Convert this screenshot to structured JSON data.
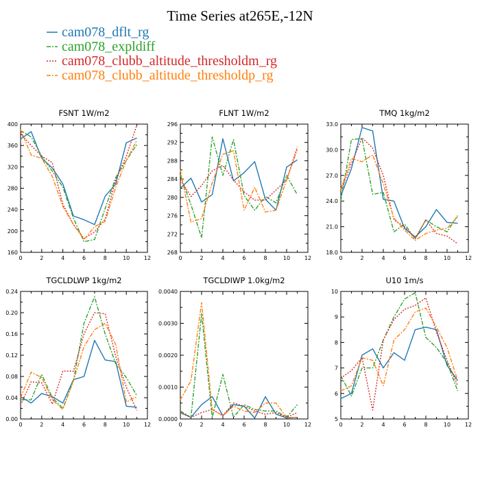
{
  "figure": {
    "title": "Time Series at265E,-12N"
  },
  "legend": [
    {
      "name": "cam078_dflt_rg",
      "color": "#1f77b4",
      "dash": "solid"
    },
    {
      "name": "cam078_expldiff",
      "color": "#2ca02c",
      "dash": "dashdot"
    },
    {
      "name": "cam078_clubb_altitude_thresholdm_rg",
      "color": "#d62728",
      "dash": "dot"
    },
    {
      "name": "cam078_clubb_altitude_thresholdp_rg",
      "color": "#ff7f0e",
      "dash": "dashdot"
    }
  ],
  "chart_data": [
    {
      "type": "line",
      "title": "FSNT   1W/m2",
      "x": [
        0,
        1,
        2,
        3,
        4,
        5,
        6,
        7,
        8,
        9,
        10,
        11
      ],
      "xlim": [
        0,
        12
      ],
      "ylim": [
        160,
        400
      ],
      "xticks": [
        0,
        2,
        4,
        6,
        8,
        10,
        12
      ],
      "xticklabels": [
        "0",
        "2",
        "4",
        "6",
        "8",
        "10",
        "12"
      ],
      "yticks": [
        160,
        200,
        240,
        280,
        320,
        360,
        400
      ],
      "yticklabels": [
        "160",
        "200",
        "240",
        "280",
        "320",
        "360",
        "400"
      ],
      "series": [
        {
          "name": "cam078_dflt_rg",
          "values": [
            372,
            386,
            336,
            318,
            288,
            228,
            221,
            212,
            265,
            288,
            365,
            374
          ]
        },
        {
          "name": "cam078_expldiff",
          "values": [
            388,
            376,
            340,
            312,
            282,
            224,
            180,
            184,
            242,
            300,
            332,
            362
          ]
        },
        {
          "name": "cam078_clubb_altitude_thresholdm_rg",
          "values": [
            382,
            360,
            340,
            328,
            250,
            212,
            186,
            198,
            222,
            296,
            340,
            398
          ]
        },
        {
          "name": "cam078_clubb_altitude_thresholdp_rg",
          "values": [
            390,
            342,
            336,
            302,
            246,
            212,
            184,
            208,
            218,
            282,
            332,
            370
          ]
        }
      ]
    },
    {
      "type": "line",
      "title": "FLNT   1W/m2",
      "x": [
        0,
        1,
        2,
        3,
        4,
        5,
        6,
        7,
        8,
        9,
        10,
        11
      ],
      "xlim": [
        0,
        12
      ],
      "ylim": [
        268,
        296
      ],
      "xticks": [
        0,
        2,
        4,
        6,
        8,
        10,
        12
      ],
      "xticklabels": [
        "0",
        "2",
        "4",
        "6",
        "8",
        "10",
        "12"
      ],
      "yticks": [
        268,
        272,
        276,
        280,
        284,
        288,
        292,
        296
      ],
      "yticklabels": [
        "268",
        "272",
        "276",
        "280",
        "284",
        "288",
        "292",
        "296"
      ],
      "series": [
        {
          "name": "cam078_dflt_rg",
          "values": [
            282,
            284.2,
            279,
            280.6,
            292.8,
            283.6,
            285.4,
            287.8,
            279.6,
            277.2,
            286.6,
            288.2
          ]
        },
        {
          "name": "cam078_expldiff",
          "values": [
            284.8,
            278.4,
            271.2,
            293.2,
            284.8,
            292.6,
            280.4,
            277.2,
            280.2,
            278.8,
            284.8,
            280.6
          ]
        },
        {
          "name": "cam078_clubb_altitude_thresholdm_rg",
          "values": [
            283.8,
            280.2,
            282.6,
            285.8,
            287,
            283.8,
            281.2,
            279.4,
            279.4,
            281.6,
            283.8,
            291
          ]
        },
        {
          "name": "cam078_clubb_altitude_thresholdp_rg",
          "values": [
            286,
            274.6,
            275.4,
            283.2,
            289.4,
            290.2,
            277.2,
            282.2,
            276.8,
            277.2,
            283.8,
            290.4
          ]
        }
      ]
    },
    {
      "type": "line",
      "title": "TMQ   1kg/m2",
      "x": [
        0,
        1,
        2,
        3,
        4,
        5,
        6,
        7,
        8,
        9,
        10,
        11
      ],
      "xlim": [
        0,
        12
      ],
      "ylim": [
        18,
        33
      ],
      "xticks": [
        0,
        2,
        4,
        6,
        8,
        10,
        12
      ],
      "xticklabels": [
        "0",
        "2",
        "4",
        "6",
        "8",
        "10",
        "12"
      ],
      "yticks": [
        18,
        21,
        24,
        27,
        30,
        33
      ],
      "yticklabels": [
        "18.0",
        "21.0",
        "24.0",
        "27.0",
        "30.0",
        "33.0"
      ],
      "series": [
        {
          "name": "cam078_dflt_rg",
          "values": [
            24.6,
            27.8,
            32.6,
            32.2,
            24.2,
            24.0,
            20.8,
            19.8,
            21.0,
            23.0,
            21.5,
            21.4
          ]
        },
        {
          "name": "cam078_expldiff",
          "values": [
            24.0,
            31.2,
            31.3,
            24.8,
            25.0,
            20.4,
            21.3,
            19.6,
            21.8,
            21.0,
            20.4,
            22.3
          ]
        },
        {
          "name": "cam078_clubb_altitude_thresholdm_rg",
          "values": [
            25.2,
            28.4,
            31.4,
            30.2,
            27.0,
            21.8,
            21.0,
            19.6,
            21.8,
            20.2,
            19.9,
            19.0
          ]
        },
        {
          "name": "cam078_clubb_altitude_thresholdp_rg",
          "values": [
            25.4,
            29.0,
            28.6,
            29.4,
            26.0,
            22.0,
            20.6,
            19.4,
            20.2,
            20.6,
            20.8,
            22.2
          ]
        }
      ]
    },
    {
      "type": "line",
      "title": "TGCLDLWP   1kg/m2",
      "x": [
        0,
        1,
        2,
        3,
        4,
        5,
        6,
        7,
        8,
        9,
        10,
        11
      ],
      "xlim": [
        0,
        12
      ],
      "ylim": [
        0,
        0.24
      ],
      "xticks": [
        0,
        2,
        4,
        6,
        8,
        10,
        12
      ],
      "xticklabels": [
        "0",
        "2",
        "4",
        "6",
        "8",
        "10",
        "12"
      ],
      "yticks": [
        0,
        0.04,
        0.08,
        0.12,
        0.16,
        0.2,
        0.24
      ],
      "yticklabels": [
        "0.00",
        "0.04",
        "0.08",
        "0.12",
        "0.16",
        "0.20",
        "0.24"
      ],
      "series": [
        {
          "name": "cam078_dflt_rg",
          "values": [
            0.042,
            0.03,
            0.048,
            0.042,
            0.03,
            0.074,
            0.08,
            0.148,
            0.111,
            0.108,
            0.024,
            0.022
          ]
        },
        {
          "name": "cam078_expldiff",
          "values": [
            0.036,
            0.036,
            0.084,
            0.04,
            0.02,
            0.072,
            0.18,
            0.23,
            0.16,
            0.104,
            0.078,
            0.044
          ]
        },
        {
          "name": "cam078_clubb_altitude_thresholdm_rg",
          "values": [
            0.026,
            0.07,
            0.068,
            0.028,
            0.09,
            0.09,
            0.16,
            0.2,
            0.198,
            0.118,
            0.06,
            0.016
          ]
        },
        {
          "name": "cam078_clubb_altitude_thresholdp_rg",
          "values": [
            0.04,
            0.088,
            0.078,
            0.036,
            0.018,
            0.072,
            0.136,
            0.168,
            0.18,
            0.14,
            0.032,
            0.042
          ]
        }
      ]
    },
    {
      "type": "line",
      "title": "TGCLDIWP   1.0kg/m2",
      "x": [
        0,
        1,
        2,
        3,
        4,
        5,
        6,
        7,
        8,
        9,
        10,
        11
      ],
      "xlim": [
        0,
        12
      ],
      "ylim": [
        0,
        0.004
      ],
      "xticks": [
        0,
        2,
        4,
        6,
        8,
        10,
        12
      ],
      "xticklabels": [
        "0",
        "2",
        "4",
        "6",
        "8",
        "10",
        "12"
      ],
      "yticks": [
        0,
        0.001,
        0.002,
        0.003,
        0.004
      ],
      "yticklabels": [
        "0.0000",
        "0.0010",
        "0.0020",
        "0.0030",
        "0.0040"
      ],
      "series": [
        {
          "name": "cam078_dflt_rg",
          "values": [
            0.0002,
            5e-05,
            0.00045,
            0.0007,
            0.0001,
            0.00045,
            0.0004,
            3e-05,
            0.0007,
            0.00015,
            3e-05,
            5e-05
          ]
        },
        {
          "name": "cam078_expldiff",
          "values": [
            0.00025,
            5e-05,
            0.0033,
            5e-05,
            0.0014,
            5e-05,
            0.00045,
            0.0003,
            0.00025,
            0.00025,
            5e-05,
            0.00045
          ]
        },
        {
          "name": "cam078_clubb_altitude_thresholdm_rg",
          "values": [
            0.0002,
            5e-05,
            0.0002,
            0.0003,
            0.0001,
            0.0005,
            0.0004,
            0.00025,
            0.00015,
            0.0002,
            5e-05,
            0.0002
          ]
        },
        {
          "name": "cam078_clubb_altitude_thresholdp_rg",
          "values": [
            0.0006,
            0.0012,
            0.00365,
            0.0003,
            0.0001,
            0.0004,
            0.00025,
            0.0002,
            0.0005,
            0.0005,
            5e-05,
            5e-05
          ]
        }
      ]
    },
    {
      "type": "line",
      "title": "U10   1m/s",
      "x": [
        0,
        1,
        2,
        3,
        4,
        5,
        6,
        7,
        8,
        9,
        10,
        11
      ],
      "xlim": [
        0,
        12
      ],
      "ylim": [
        5,
        10
      ],
      "xticks": [
        0,
        2,
        4,
        6,
        8,
        10,
        12
      ],
      "xticklabels": [
        "0",
        "2",
        "4",
        "6",
        "8",
        "10",
        "12"
      ],
      "yticks": [
        5,
        6,
        7,
        8,
        9,
        10
      ],
      "yticklabels": [
        "5",
        "6",
        "7",
        "8",
        "9",
        "10"
      ],
      "series": [
        {
          "name": "cam078_dflt_rg",
          "values": [
            5.8,
            6.0,
            7.5,
            7.75,
            7.0,
            7.6,
            7.3,
            8.5,
            8.6,
            8.5,
            7.1,
            6.5
          ]
        },
        {
          "name": "cam078_expldiff",
          "values": [
            6.7,
            5.9,
            7.0,
            7.0,
            8.1,
            9.0,
            9.7,
            9.95,
            8.2,
            7.8,
            7.2,
            6.1
          ]
        },
        {
          "name": "cam078_clubb_altitude_thresholdm_rg",
          "values": [
            6.6,
            6.9,
            7.4,
            5.35,
            8.1,
            8.9,
            9.3,
            9.45,
            9.75,
            8.4,
            7.3,
            6.3
          ]
        },
        {
          "name": "cam078_clubb_altitude_thresholdp_rg",
          "values": [
            6.1,
            6.3,
            7.4,
            7.3,
            6.3,
            8.1,
            8.5,
            9.2,
            9.35,
            8.6,
            7.8,
            6.5
          ]
        }
      ]
    }
  ]
}
